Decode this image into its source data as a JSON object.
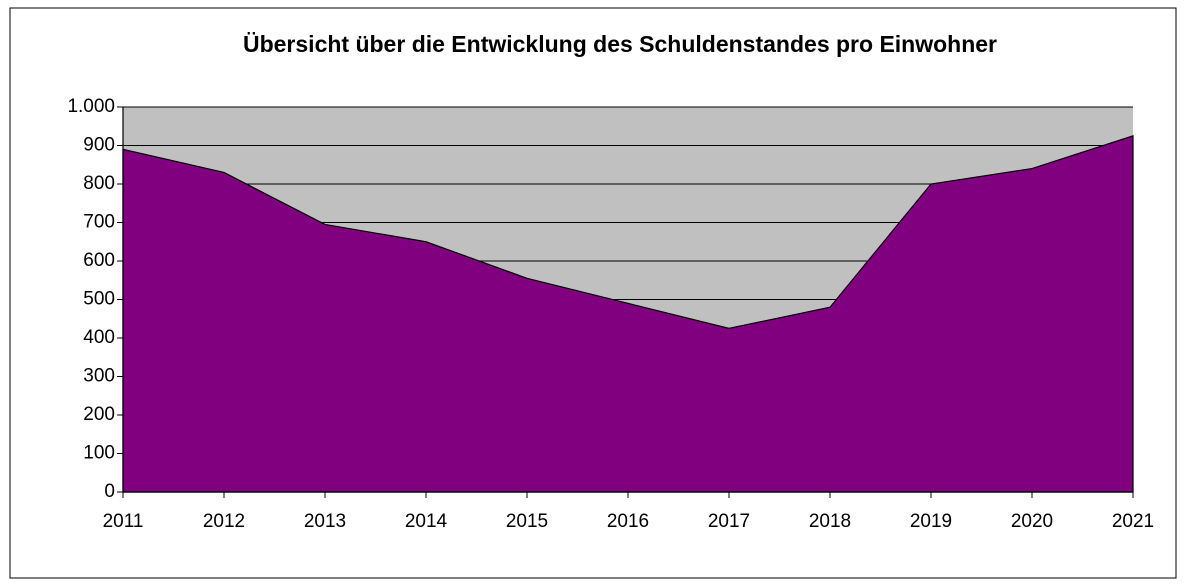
{
  "chart_data": {
    "type": "area",
    "title": "Übersicht über die Entwicklung des Schuldenstandes pro Einwohner",
    "categories": [
      "2011",
      "2012",
      "2013",
      "2014",
      "2015",
      "2016",
      "2017",
      "2018",
      "2019",
      "2020",
      "2021"
    ],
    "series": [
      {
        "color": "#800080",
        "values": [
          890,
          830,
          695,
          650,
          555,
          490,
          425,
          480,
          800,
          840,
          925
        ]
      }
    ],
    "ylim": [
      0,
      1000
    ],
    "yticks": [
      0,
      100,
      200,
      300,
      400,
      500,
      600,
      700,
      800,
      900,
      {
        "value": 1000,
        "label": "1.000"
      }
    ],
    "grid": true,
    "plot_background": "#c0c0c0"
  }
}
